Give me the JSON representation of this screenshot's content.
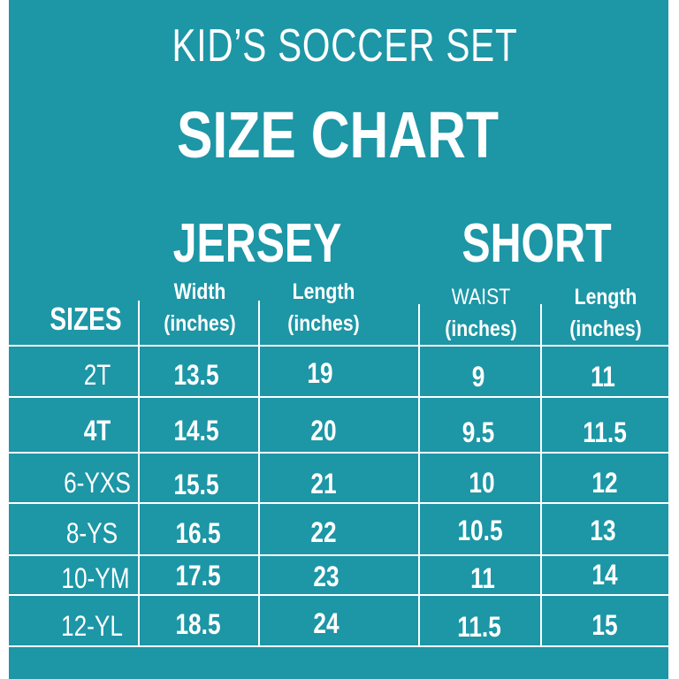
{
  "title": "KID’S SOCCER SET",
  "subtitle": "SIZE CHART",
  "groups": {
    "jersey": "JERSEY",
    "short": "SHORT"
  },
  "columns": {
    "sizes": "SIZES",
    "jersey_width_top": "Width",
    "jersey_width_bottom": "(inches)",
    "jersey_length_top": "Length",
    "jersey_length_bottom": "(inches)",
    "short_waist_top": "WAIST",
    "short_waist_bottom": "(inches)",
    "short_length_top": "Length",
    "short_length_bottom": "(inches)"
  },
  "rows": [
    {
      "size": "2T",
      "jersey_width": "13.5",
      "jersey_length": "19",
      "short_waist": "9",
      "short_length": "11"
    },
    {
      "size": "4T",
      "jersey_width": "14.5",
      "jersey_length": "20",
      "short_waist": "9.5",
      "short_length": "11.5"
    },
    {
      "size": "6-YXS",
      "jersey_width": "15.5",
      "jersey_length": "21",
      "short_waist": "10",
      "short_length": "12"
    },
    {
      "size": "8-YS",
      "jersey_width": "16.5",
      "jersey_length": "22",
      "short_waist": "10.5",
      "short_length": "13"
    },
    {
      "size": "10-YM",
      "jersey_width": "17.5",
      "jersey_length": "23",
      "short_waist": "11",
      "short_length": "14"
    },
    {
      "size": "12-YL",
      "jersey_width": "18.5",
      "jersey_length": "24",
      "short_waist": "11.5",
      "short_length": "15"
    }
  ],
  "colors": {
    "background": "#1d96a6",
    "text": "#ffffff"
  }
}
